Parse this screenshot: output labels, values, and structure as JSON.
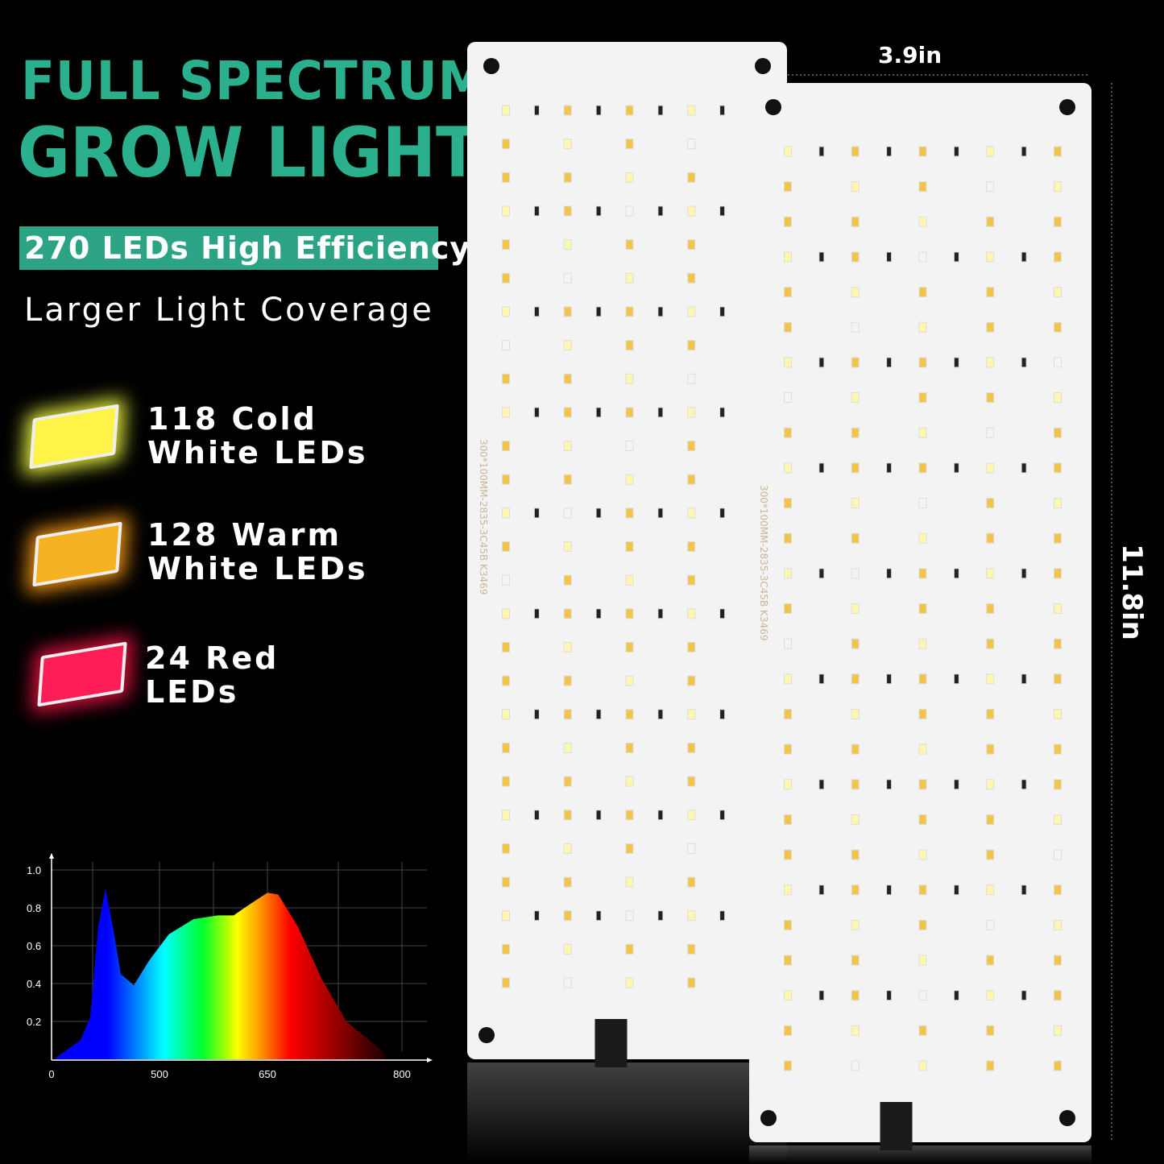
{
  "headline": {
    "line1": "FULL SPECTRUM",
    "line2": "GROW LIGHT"
  },
  "badge": "270 LEDs High Efficiency",
  "subtitle": "Larger Light Coverage",
  "led_types": [
    {
      "label": "118 Cold\nWhite LEDs",
      "color": "#fff34a"
    },
    {
      "label": "128 Warm\nWhite LEDs",
      "color": "#f5b323"
    },
    {
      "label": "24 Red\nLEDs",
      "color": "#ff1d58"
    }
  ],
  "dimensions": {
    "width": "3.9in",
    "height": "11.8in"
  },
  "pcb_marking": "300*100MM-2835-3C45B K3469",
  "accent_color": "#2bb08e",
  "chart_data": {
    "type": "area",
    "title": "",
    "xlabel": "",
    "ylabel": "",
    "x_ticks": [
      0,
      500,
      650,
      800
    ],
    "y_ticks": [
      0.2,
      0.4,
      0.6,
      0.8,
      1.0
    ],
    "y_tick_labels": [
      "0.2",
      "0.4",
      "0.6",
      "0.8",
      "1.0"
    ],
    "x_tick_labels": [
      "0",
      "500",
      "650",
      "800"
    ],
    "ylim": [
      0,
      1.0
    ],
    "grid": true,
    "fill": "rainbow spectrum gradient",
    "x": [
      22,
      134,
      179,
      216,
      250,
      284,
      321,
      381,
      451,
      513,
      547,
      581,
      603,
      626,
      650,
      662,
      684,
      711,
      738,
      774,
      782
    ],
    "y": [
      0.01,
      0.1,
      0.22,
      0.7,
      0.9,
      0.7,
      0.45,
      0.39,
      0.52,
      0.66,
      0.74,
      0.76,
      0.76,
      0.82,
      0.88,
      0.87,
      0.7,
      0.42,
      0.2,
      0.06,
      0.03
    ]
  }
}
